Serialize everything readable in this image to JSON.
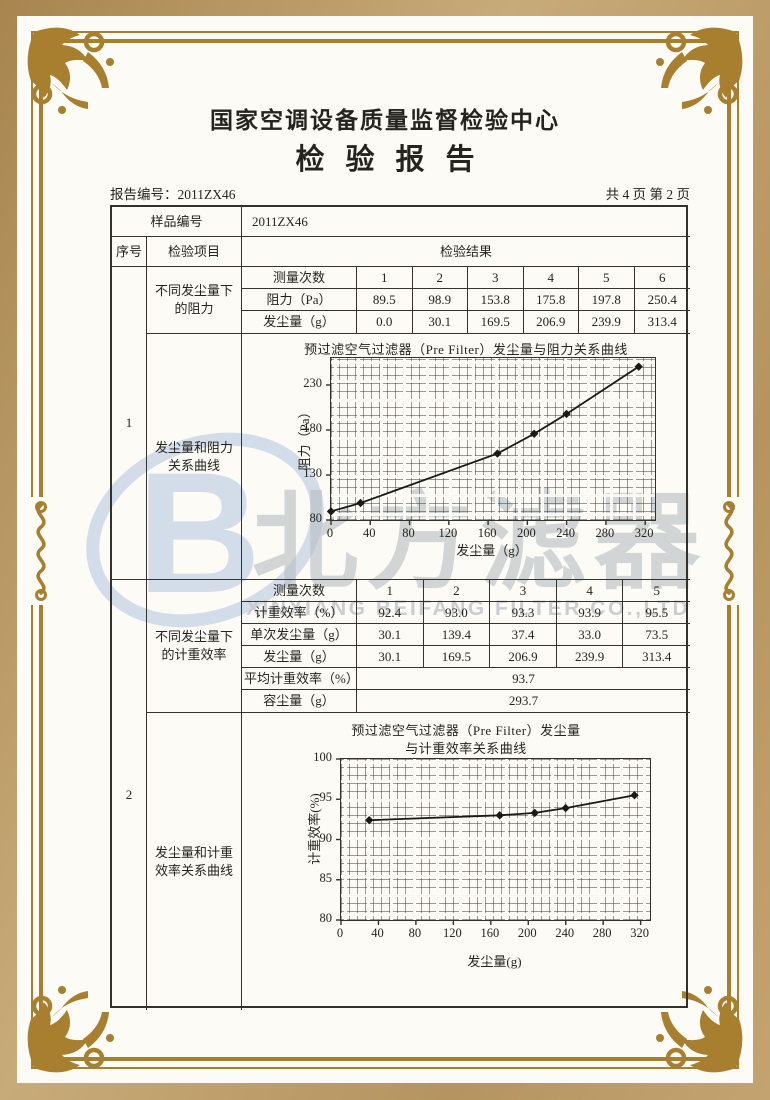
{
  "page": {
    "center_name": "国家空调设备质量监督检验中心",
    "report_title": "检验报告",
    "report_no": "报告编号：2011ZX46",
    "page_info": "共 4 页 第 2 页"
  },
  "sample": {
    "label": "样品编号",
    "value": "2011ZX46"
  },
  "header": {
    "seq": "序号",
    "item": "检验项目",
    "result": "检验结果"
  },
  "block1": {
    "seq": "1",
    "item1": "不同发尘量下的阻力",
    "item2": "发尘量和阻力关系曲线",
    "table": {
      "row_labels": [
        "测量次数",
        "阻力（Pa）",
        "发尘量（g）"
      ],
      "columns": [
        "1",
        "2",
        "3",
        "4",
        "5",
        "6"
      ],
      "resistance": [
        "89.5",
        "98.9",
        "153.8",
        "175.8",
        "197.8",
        "250.4"
      ],
      "dust": [
        "0.0",
        "30.1",
        "169.5",
        "206.9",
        "239.9",
        "313.4"
      ]
    }
  },
  "block2": {
    "seq": "2",
    "item1": "不同发尘量下的计重效率",
    "item2": "发尘量和计重效率关系曲线",
    "table": {
      "row_labels": [
        "测量次数",
        "计重效率（%）",
        "单次发尘量（g）",
        "发尘量（g）",
        "平均计重效率（%）",
        "容尘量（g）"
      ],
      "columns": [
        "1",
        "2",
        "3",
        "4",
        "5"
      ],
      "efficiency": [
        "92.4",
        "93.0",
        "93.3",
        "93.9",
        "95.5"
      ],
      "single_dust": [
        "30.1",
        "139.4",
        "37.4",
        "33.0",
        "73.5"
      ],
      "dust": [
        "30.1",
        "169.5",
        "206.9",
        "239.9",
        "313.4"
      ],
      "avg_efficiency": "93.7",
      "dust_capacity": "293.7"
    }
  },
  "chart_data": [
    {
      "type": "line",
      "title": "预过滤空气过滤器（Pre Filter）发尘量与阻力关系曲线",
      "xlabel": "发尘量（g）",
      "ylabel": "阻力（Pa）",
      "x": [
        0,
        30.1,
        169.5,
        206.9,
        239.9,
        313.4
      ],
      "y": [
        89.5,
        98.9,
        153.8,
        175.8,
        197.8,
        250.4
      ],
      "xlim": [
        0,
        330
      ],
      "ylim": [
        80,
        260
      ],
      "xticks": [
        0,
        40,
        80,
        120,
        160,
        200,
        240,
        280,
        320
      ],
      "yticks": [
        80,
        130,
        180,
        230
      ],
      "grid": true,
      "marker": "diamond",
      "legend": "none"
    },
    {
      "type": "line",
      "title": "预过滤空气过滤器（Pre Filter）发尘量",
      "title2": "与计重效率关系曲线",
      "xlabel": "发尘量(g)",
      "ylabel": "计重效率(%)",
      "x": [
        30.1,
        169.5,
        206.9,
        239.9,
        313.4
      ],
      "y": [
        92.4,
        93.0,
        93.3,
        93.9,
        95.5
      ],
      "xlim": [
        0,
        330
      ],
      "ylim": [
        80,
        100
      ],
      "xticks": [
        0,
        40,
        80,
        120,
        160,
        200,
        240,
        280,
        320
      ],
      "yticks": [
        80,
        85,
        90,
        95,
        100
      ],
      "grid": true,
      "marker": "diamond",
      "legend": "none"
    }
  ],
  "watermark": {
    "logo_letter": "B",
    "text_cn": "北方滤器",
    "text_en": "XINXIANG BEIFANG FILTER CO.,LTD"
  },
  "colors": {
    "frame_gold": "#a87f2e",
    "watermark_blue": "#ccd8e8",
    "watermark_grey": "#b6bcc1",
    "ink": "#26241f"
  }
}
